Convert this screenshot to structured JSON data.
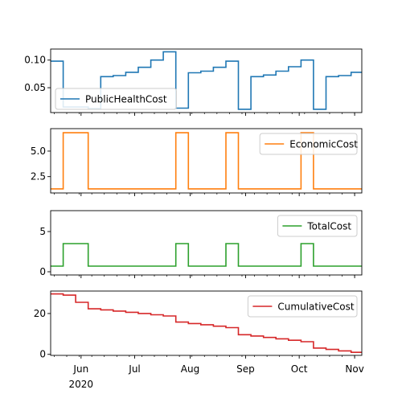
{
  "chart_data": [
    {
      "type": "line",
      "drawstyle": "steps-post",
      "series": [
        {
          "name": "PublicHealthCost",
          "color": "#1f77b4",
          "x": [
            "2020-05-15",
            "2020-05-22",
            "2020-06-05",
            "2020-06-12",
            "2020-06-19",
            "2020-06-26",
            "2020-07-03",
            "2020-07-10",
            "2020-07-17",
            "2020-07-24",
            "2020-07-31",
            "2020-08-07",
            "2020-08-14",
            "2020-08-21",
            "2020-08-28",
            "2020-09-04",
            "2020-09-11",
            "2020-09-18",
            "2020-09-25",
            "2020-10-02",
            "2020-10-09",
            "2020-10-16",
            "2020-10-23",
            "2020-10-30",
            "2020-11-05"
          ],
          "y": [
            0.098,
            0.015,
            0.012,
            0.07,
            0.072,
            0.078,
            0.087,
            0.1,
            0.115,
            0.013,
            0.077,
            0.08,
            0.087,
            0.098,
            0.011,
            0.07,
            0.073,
            0.08,
            0.088,
            0.1,
            0.011,
            0.07,
            0.072,
            0.078,
            0.078
          ]
        }
      ],
      "yticks": [
        0.05,
        0.1
      ],
      "ytick_labels": [
        "0.05",
        "0.10"
      ],
      "ylim": [
        0.005,
        0.12
      ],
      "legend": "lower-left"
    },
    {
      "type": "line",
      "drawstyle": "steps-post",
      "series": [
        {
          "name": "EconomicCost",
          "color": "#ff7f0e",
          "x": [
            "2020-05-15",
            "2020-05-22",
            "2020-06-05",
            "2020-07-24",
            "2020-07-31",
            "2020-08-21",
            "2020-08-28",
            "2020-10-02",
            "2020-10-09",
            "2020-11-05"
          ],
          "y": [
            1.3,
            6.8,
            1.3,
            6.8,
            1.3,
            6.8,
            1.3,
            6.8,
            1.3,
            1.3
          ]
        }
      ],
      "yticks": [
        2.5,
        5.0
      ],
      "ytick_labels": [
        "2.5",
        "5.0"
      ],
      "ylim": [
        0.9,
        7.2
      ],
      "legend": "upper-right"
    },
    {
      "type": "line",
      "drawstyle": "steps-post",
      "series": [
        {
          "name": "TotalCost",
          "color": "#2ca02c",
          "x": [
            "2020-05-15",
            "2020-05-22",
            "2020-06-05",
            "2020-07-24",
            "2020-07-31",
            "2020-08-21",
            "2020-08-28",
            "2020-10-02",
            "2020-10-09",
            "2020-11-05"
          ],
          "y": [
            0.7,
            3.5,
            0.7,
            3.5,
            0.7,
            3.5,
            0.7,
            3.5,
            0.7,
            0.7
          ]
        }
      ],
      "yticks": [
        0,
        5
      ],
      "ytick_labels": [
        "0",
        "5"
      ],
      "ylim": [
        -0.4,
        7.6
      ],
      "legend": "upper-right"
    },
    {
      "type": "line",
      "drawstyle": "steps-post",
      "series": [
        {
          "name": "CumulativeCost",
          "color": "#d62728",
          "x": [
            "2020-05-15",
            "2020-05-22",
            "2020-05-29",
            "2020-06-05",
            "2020-06-12",
            "2020-06-19",
            "2020-06-26",
            "2020-07-03",
            "2020-07-10",
            "2020-07-17",
            "2020-07-24",
            "2020-07-31",
            "2020-08-07",
            "2020-08-14",
            "2020-08-21",
            "2020-08-28",
            "2020-09-04",
            "2020-09-11",
            "2020-09-18",
            "2020-09-25",
            "2020-10-02",
            "2020-10-09",
            "2020-10-16",
            "2020-10-23",
            "2020-10-30",
            "2020-11-05"
          ],
          "y": [
            29.6,
            29.0,
            25.5,
            22.3,
            21.8,
            21.2,
            20.6,
            20.0,
            19.4,
            18.8,
            15.8,
            15.1,
            14.5,
            13.8,
            13.1,
            9.6,
            9.0,
            8.3,
            7.6,
            6.9,
            6.2,
            3.1,
            2.4,
            1.7,
            1.0,
            1.0
          ]
        }
      ],
      "yticks": [
        0,
        20
      ],
      "ytick_labels": [
        "0",
        "20"
      ],
      "ylim": [
        -0.5,
        31.0
      ],
      "legend": "upper-right"
    }
  ],
  "shared_x": {
    "xlim": [
      "2020-05-15",
      "2020-11-05"
    ],
    "major_ticks": [
      {
        "date": "2020-06-01",
        "label": "Jun",
        "sublabel": "2020"
      },
      {
        "date": "2020-07-01",
        "label": "Jul",
        "sublabel": ""
      },
      {
        "date": "2020-08-01",
        "label": "Aug",
        "sublabel": ""
      },
      {
        "date": "2020-09-01",
        "label": "Sep",
        "sublabel": ""
      },
      {
        "date": "2020-10-01",
        "label": "Oct",
        "sublabel": ""
      },
      {
        "date": "2020-11-01",
        "label": "Nov",
        "sublabel": ""
      }
    ],
    "minor_tick_weekday": "Sunday"
  }
}
